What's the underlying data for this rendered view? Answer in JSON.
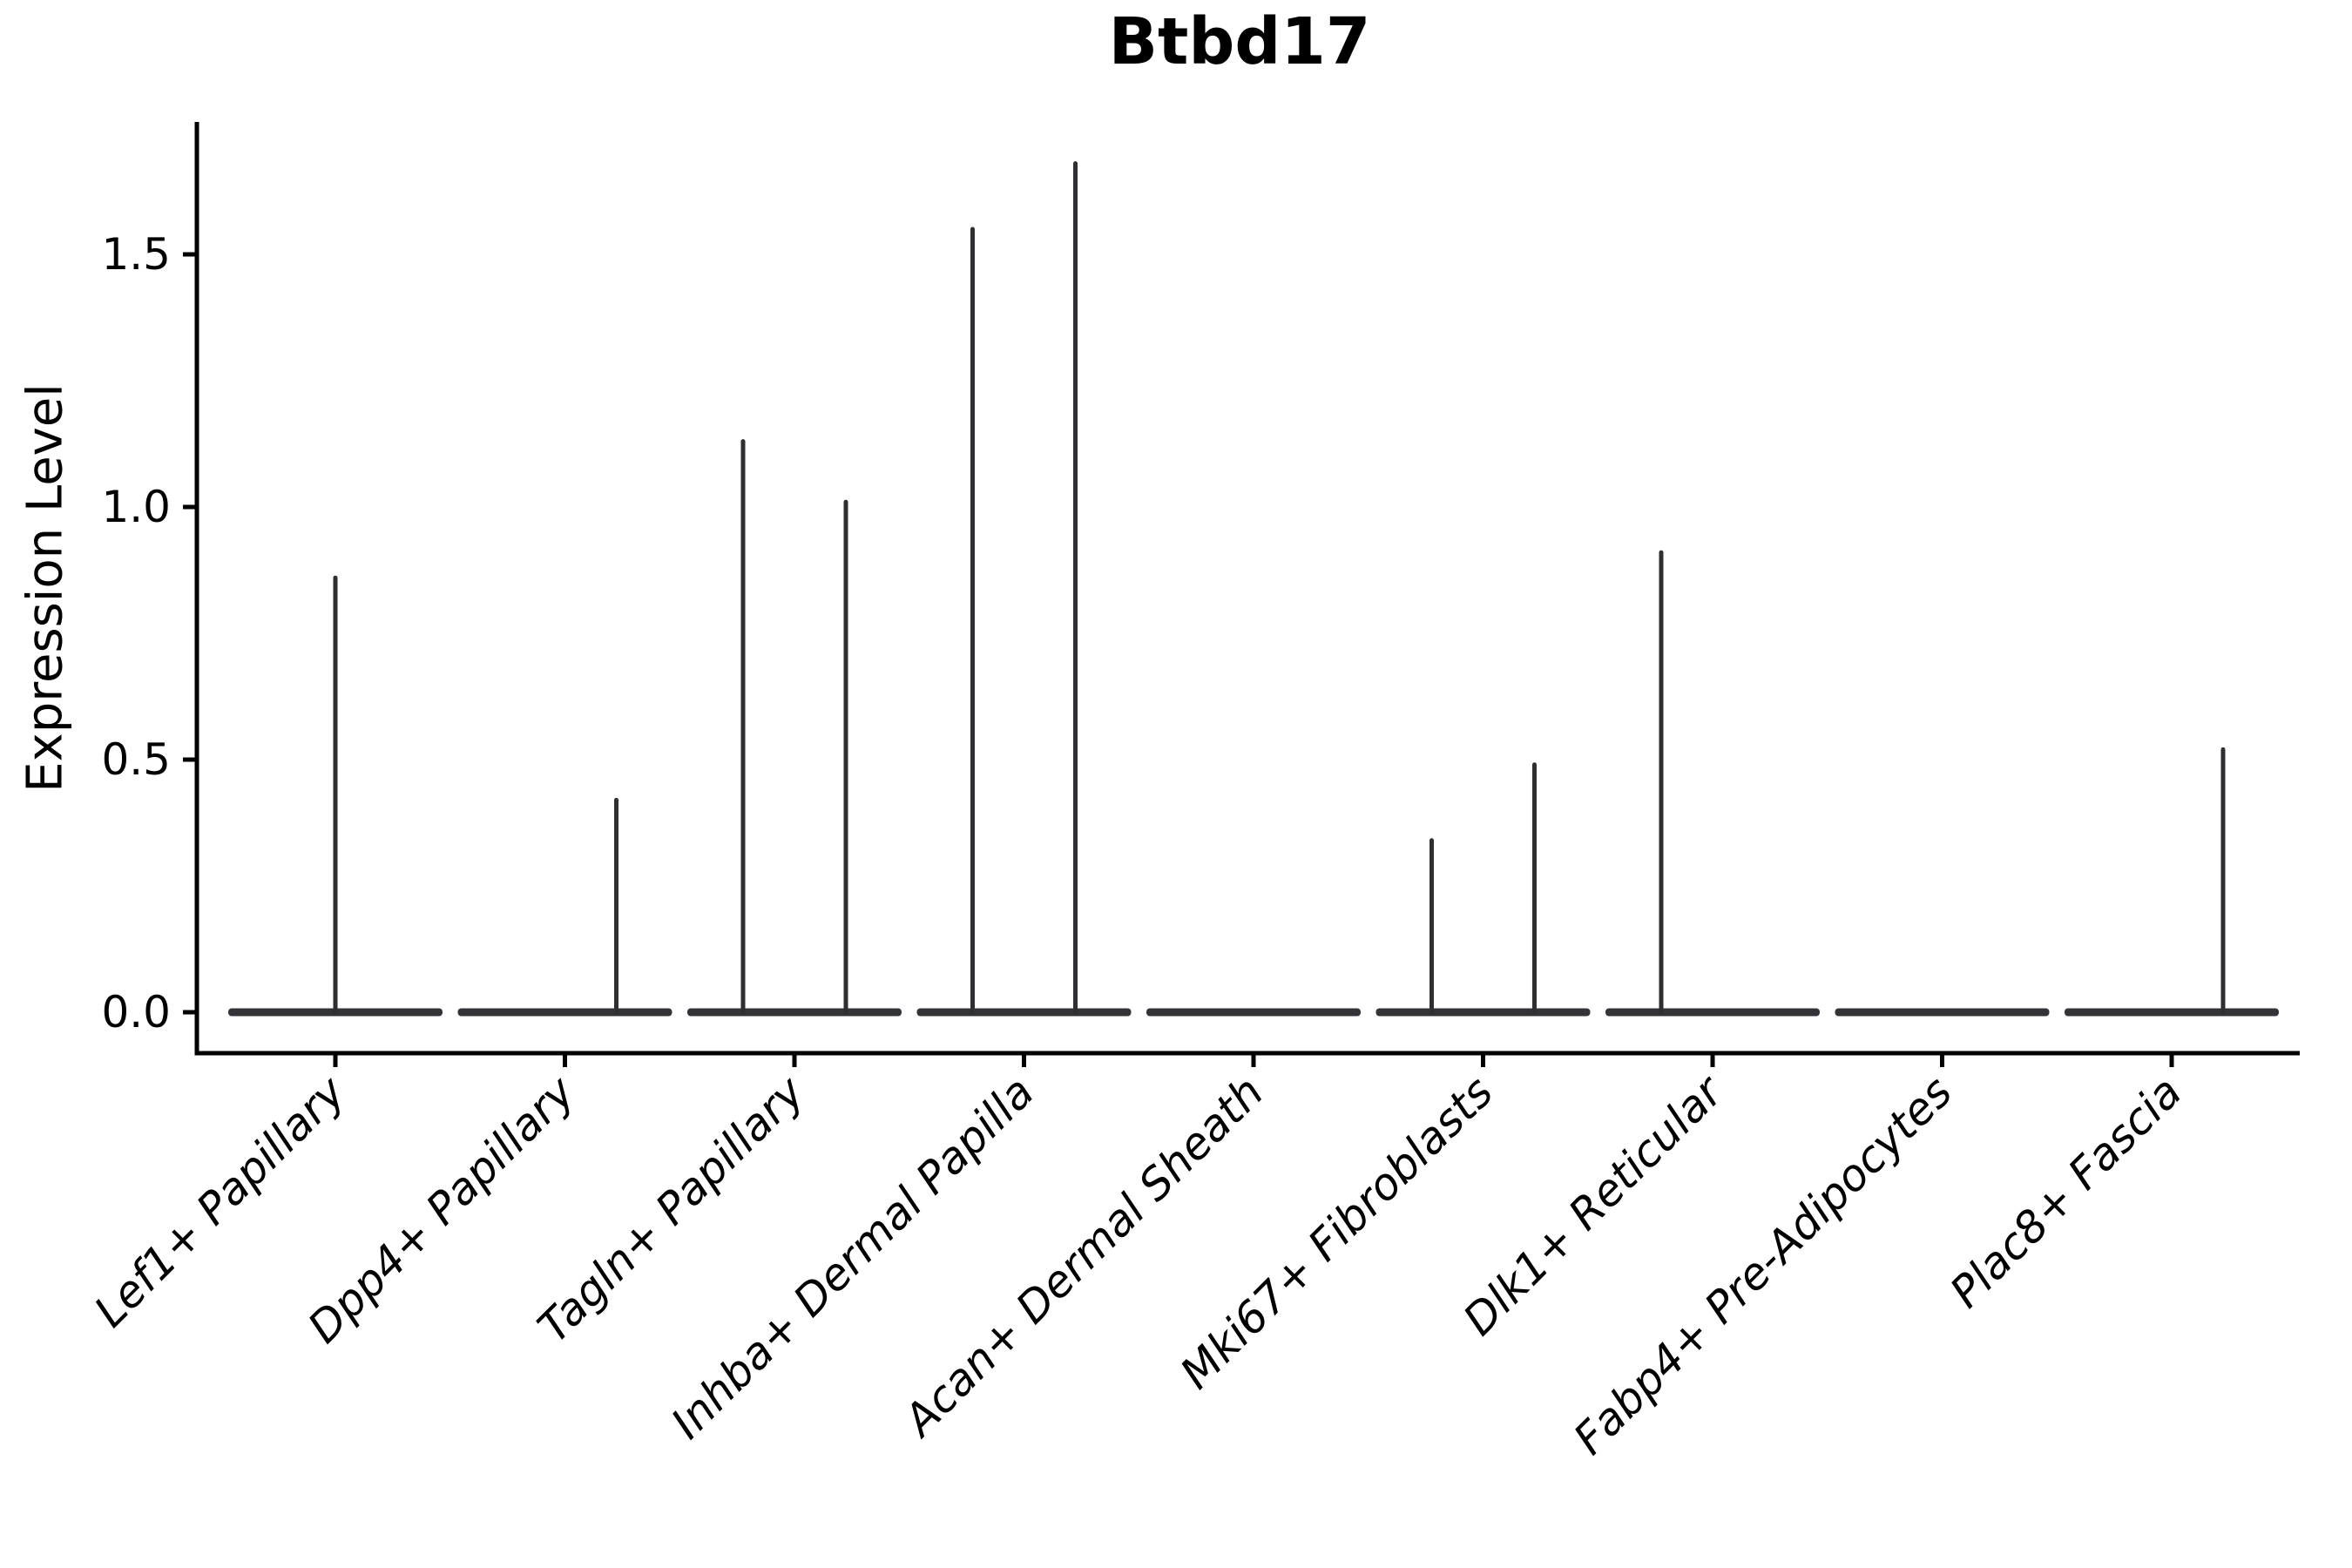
{
  "page_title": "Btbd17",
  "chart_data": {
    "type": "violin",
    "title": "Btbd17",
    "xlabel": "",
    "ylabel": "Expression Level",
    "yticks": [
      0.0,
      0.5,
      1.0,
      1.5
    ],
    "ytick_labels": [
      "0.0",
      "0.5",
      "1.0",
      "1.5"
    ],
    "ylim": [
      -0.08,
      1.76
    ],
    "grid": false,
    "legend": "none",
    "x_tick_rotation": 45,
    "categories": [
      "Lef1+ Papillary",
      "Dpp4+ Papillary",
      "Tagln+ Papillary",
      "Inhba+ Dermal Papilla",
      "Acan+ Dermal Sheath",
      "Mki67+ Fibroblasts",
      "Dlk1+ Reticular",
      "Fabp4+ Pre-Adipocytes",
      "Plac8+ Fascia"
    ],
    "violins": [
      {
        "category": "Lef1+ Papillary",
        "baseline_value": 0.0,
        "spikes": [
          {
            "position": "center",
            "max_value": 0.86
          }
        ]
      },
      {
        "category": "Dpp4+ Papillary",
        "baseline_value": 0.0,
        "spikes": [
          {
            "position": "right",
            "max_value": 0.42
          }
        ]
      },
      {
        "category": "Tagln+ Papillary",
        "baseline_value": 0.0,
        "spikes": [
          {
            "position": "left",
            "max_value": 1.13
          },
          {
            "position": "right",
            "max_value": 1.01
          }
        ]
      },
      {
        "category": "Inhba+ Dermal Papilla",
        "baseline_value": 0.0,
        "spikes": [
          {
            "position": "left",
            "max_value": 1.55
          },
          {
            "position": "right",
            "max_value": 1.68
          }
        ]
      },
      {
        "category": "Acan+ Dermal Sheath",
        "baseline_value": 0.0,
        "spikes": []
      },
      {
        "category": "Mki67+ Fibroblasts",
        "baseline_value": 0.0,
        "spikes": [
          {
            "position": "left",
            "max_value": 0.34
          },
          {
            "position": "right",
            "max_value": 0.49
          }
        ]
      },
      {
        "category": "Dlk1+ Reticular",
        "baseline_value": 0.0,
        "spikes": [
          {
            "position": "left",
            "max_value": 0.91
          }
        ]
      },
      {
        "category": "Fabp4+ Pre-Adipocytes",
        "baseline_value": 0.0,
        "spikes": []
      },
      {
        "category": "Plac8+ Fascia",
        "baseline_value": 0.0,
        "spikes": [
          {
            "position": "right",
            "max_value": 0.52
          }
        ]
      }
    ],
    "colors": {
      "violin": "#2e2e33",
      "baseline": "#343438",
      "axis": "#000000",
      "text": "#000000",
      "background": "#ffffff"
    }
  }
}
